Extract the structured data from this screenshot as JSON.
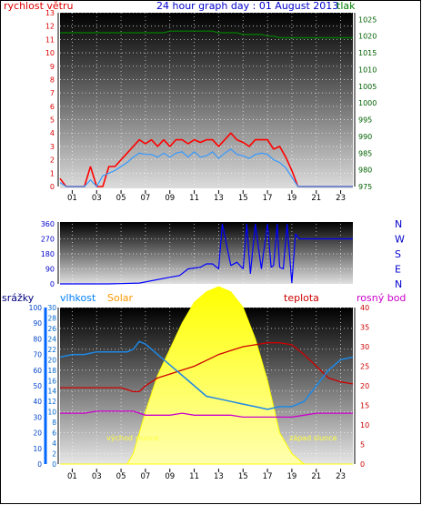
{
  "header": {
    "left_label": "rychlost větru",
    "title": "24 hour graph day : 01 August 2013",
    "right_label": "tlak"
  },
  "x_ticks": [
    "01",
    "03",
    "05",
    "07",
    "09",
    "11",
    "13",
    "15",
    "17",
    "19",
    "21",
    "23"
  ],
  "colors": {
    "wind": "#ff0000",
    "gust": "#3399ff",
    "pressure": "#008000",
    "direction": "#0000ff",
    "humidity": "#1e88e5",
    "solar": "#ffff00",
    "temperature": "#cc0000",
    "dewpoint": "#cc00cc",
    "rain": "#0066ff"
  },
  "chart_data": [
    {
      "type": "line",
      "left_axis_label": "rychlost větru",
      "right_axis_label": "tlak",
      "left_ylim": [
        0,
        13
      ],
      "right_ylim": [
        975,
        1027
      ],
      "left_ticks": [
        0,
        1,
        2,
        3,
        4,
        5,
        6,
        7,
        8,
        9,
        10,
        11,
        12,
        13
      ],
      "right_ticks": [
        975,
        980,
        985,
        990,
        995,
        1000,
        1005,
        1010,
        1015,
        1020,
        1025
      ],
      "x": [
        0,
        0.5,
        1,
        1.5,
        2,
        2.5,
        3,
        3.5,
        4,
        4.5,
        5,
        5.5,
        6,
        6.5,
        7,
        7.5,
        8,
        8.5,
        9,
        9.5,
        10,
        10.5,
        11,
        11.5,
        12,
        12.5,
        13,
        13.5,
        14,
        14.5,
        15,
        15.5,
        16,
        16.5,
        17,
        17.5,
        18,
        18.5,
        19,
        19.5,
        20,
        20.5,
        21,
        21.5,
        22,
        22.5,
        23,
        23.5,
        24
      ],
      "series": [
        {
          "name": "wind",
          "values": [
            0.6,
            0,
            0,
            0,
            0,
            1.5,
            0,
            0,
            1.5,
            1.5,
            2,
            2.5,
            3,
            3.5,
            3.2,
            3.5,
            3,
            3.5,
            3,
            3.5,
            3.5,
            3.2,
            3.5,
            3.3,
            3.5,
            3.5,
            3,
            3.5,
            4,
            3.5,
            3.3,
            3,
            3.5,
            3.5,
            3.5,
            2.8,
            3,
            2.2,
            1.2,
            0,
            0,
            0,
            0,
            0,
            0,
            0,
            0,
            0,
            0
          ]
        },
        {
          "name": "gust",
          "values": [
            0.3,
            0,
            0,
            0,
            0,
            0.5,
            0,
            0.8,
            1,
            1.2,
            1.5,
            1.8,
            2.2,
            2.5,
            2.4,
            2.4,
            2.2,
            2.5,
            2.2,
            2.5,
            2.6,
            2.2,
            2.6,
            2.2,
            2.3,
            2.6,
            2.1,
            2.5,
            2.8,
            2.4,
            2.3,
            2.1,
            2.4,
            2.5,
            2.4,
            2,
            1.8,
            1.4,
            0.7,
            0,
            0,
            0,
            0,
            0,
            0,
            0,
            0,
            0,
            0
          ]
        },
        {
          "name": "pressure",
          "values": [
            1021,
            1021,
            1021,
            1021,
            1021,
            1021,
            1021,
            1021,
            1021,
            1021,
            1021,
            1021,
            1021,
            1021,
            1021,
            1021,
            1021,
            1021,
            1021.5,
            1021.5,
            1021.5,
            1021.5,
            1021.5,
            1021.5,
            1021.5,
            1021.5,
            1021,
            1021,
            1021,
            1021,
            1020.5,
            1020.5,
            1020.5,
            1020.5,
            1020,
            1020,
            1019.5,
            1019.5,
            1019.5,
            1019.5,
            1019.5,
            1019.5,
            1019.5,
            1019.5,
            1019.5,
            1019.5,
            1019.5,
            1019.5,
            1019.5
          ]
        }
      ]
    },
    {
      "type": "line",
      "ylim": [
        0,
        360
      ],
      "ticks": [
        0,
        90,
        180,
        270,
        360
      ],
      "direction_labels": [
        "N",
        "W",
        "S",
        "E",
        "N"
      ],
      "x": [
        0,
        4,
        6.5,
        9,
        9.8,
        10.5,
        11.5,
        12,
        12.5,
        13,
        13.3,
        14,
        14.5,
        15,
        15.3,
        15.6,
        16,
        16.5,
        17,
        17.3,
        17.5,
        17.8,
        18,
        18.3,
        18.6,
        19,
        19.3,
        19.6,
        20,
        24
      ],
      "series": [
        {
          "name": "direction",
          "values": [
            0,
            0,
            5,
            40,
            50,
            90,
            100,
            120,
            120,
            90,
            360,
            110,
            130,
            90,
            360,
            60,
            360,
            90,
            360,
            100,
            110,
            360,
            100,
            90,
            360,
            5,
            300,
            270,
            270,
            270
          ]
        }
      ]
    },
    {
      "type": "area",
      "left_label_1": "srážky",
      "left_label_2": "vlhkost",
      "left_label_3": "Solar",
      "right_label_1": "teplota",
      "right_label_2": "rosný bod",
      "rain_ylim": [
        0,
        100
      ],
      "rain_ticks": [
        0,
        10,
        20,
        30,
        40,
        50,
        60,
        70,
        80,
        90,
        100
      ],
      "hum_ylim": [
        0,
        30
      ],
      "hum_ticks": [
        0,
        2,
        4,
        6,
        8,
        10,
        12,
        14,
        16,
        18,
        20,
        22,
        24,
        26,
        28,
        30
      ],
      "temp_ylim": [
        0,
        40
      ],
      "temp_ticks": [
        0,
        5,
        10,
        15,
        20,
        25,
        30,
        35,
        40
      ],
      "sunrise_label": "východ slunce",
      "sunset_label": "západ slunce",
      "x": [
        0,
        1,
        2,
        3,
        4,
        5,
        5.5,
        6,
        6.5,
        7,
        8,
        9,
        10,
        11,
        12,
        13,
        14,
        15,
        16,
        17,
        18,
        19,
        20,
        21,
        22,
        23,
        24
      ],
      "series": [
        {
          "name": "humidity",
          "values": [
            20.5,
            21,
            21,
            21.5,
            21.5,
            21.5,
            21.5,
            22,
            23.5,
            23,
            21,
            19,
            17,
            15,
            13,
            12.5,
            12,
            11.5,
            11,
            10.5,
            11,
            11,
            12,
            15,
            18,
            20,
            20.5
          ]
        },
        {
          "name": "solar",
          "values": [
            0,
            0,
            0,
            0,
            0,
            0,
            0,
            2,
            6,
            10,
            17,
            22,
            27,
            31,
            33,
            34,
            33,
            30,
            24,
            16,
            6,
            2,
            0,
            0,
            0,
            0,
            0
          ]
        },
        {
          "name": "temperature",
          "values": [
            19.5,
            19.5,
            19.5,
            19.5,
            19.5,
            19.5,
            19,
            18.5,
            18.5,
            20,
            22,
            23,
            24,
            25,
            26.5,
            28,
            29,
            30,
            30.5,
            31,
            31,
            30.5,
            28,
            25,
            22,
            21,
            20.5
          ]
        },
        {
          "name": "dewpoint",
          "values": [
            13,
            13,
            13,
            13.5,
            13.5,
            13.5,
            13.5,
            13.5,
            13,
            12.5,
            12.5,
            12.5,
            13,
            12.5,
            12.5,
            12.5,
            12.5,
            12,
            12,
            12,
            12,
            12,
            12.5,
            13,
            13,
            13,
            13
          ]
        }
      ]
    }
  ]
}
